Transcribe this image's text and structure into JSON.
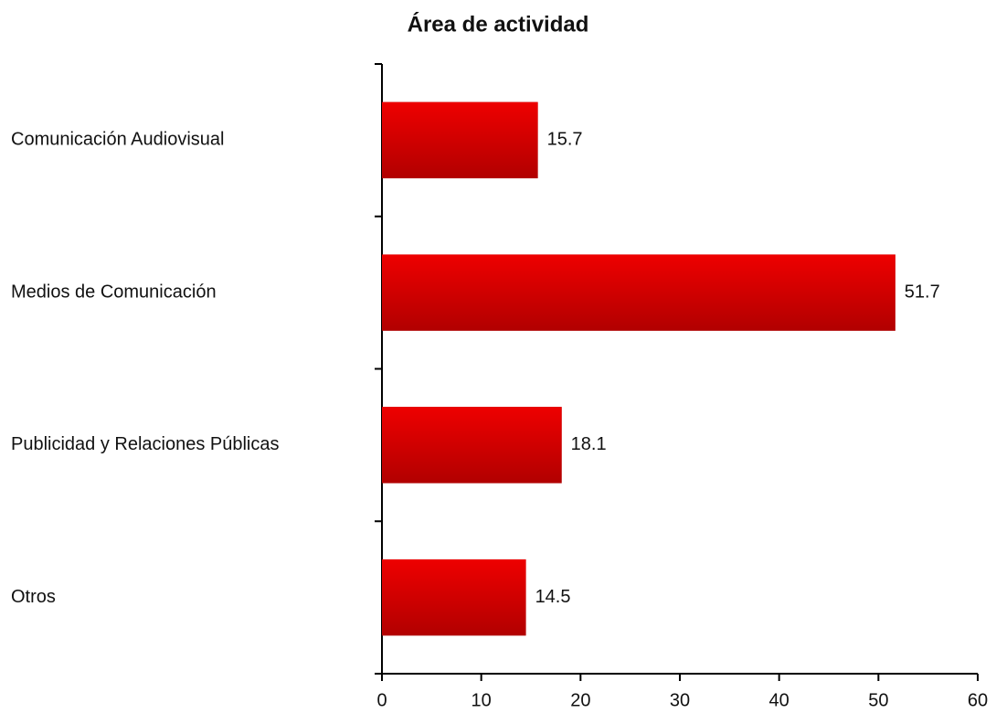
{
  "chart_data": {
    "type": "bar",
    "orientation": "horizontal",
    "title": "Área de actividad",
    "categories": [
      "Comunicación Audiovisual",
      "Medios de Comunicación",
      "Publicidad y Relaciones Públicas",
      "Otros"
    ],
    "values": [
      15.7,
      51.7,
      18.1,
      14.5
    ],
    "color": "#ee0000",
    "xlim": [
      0,
      60
    ],
    "xticks": [
      0,
      10,
      20,
      30,
      40,
      50,
      60
    ],
    "grid": false
  }
}
